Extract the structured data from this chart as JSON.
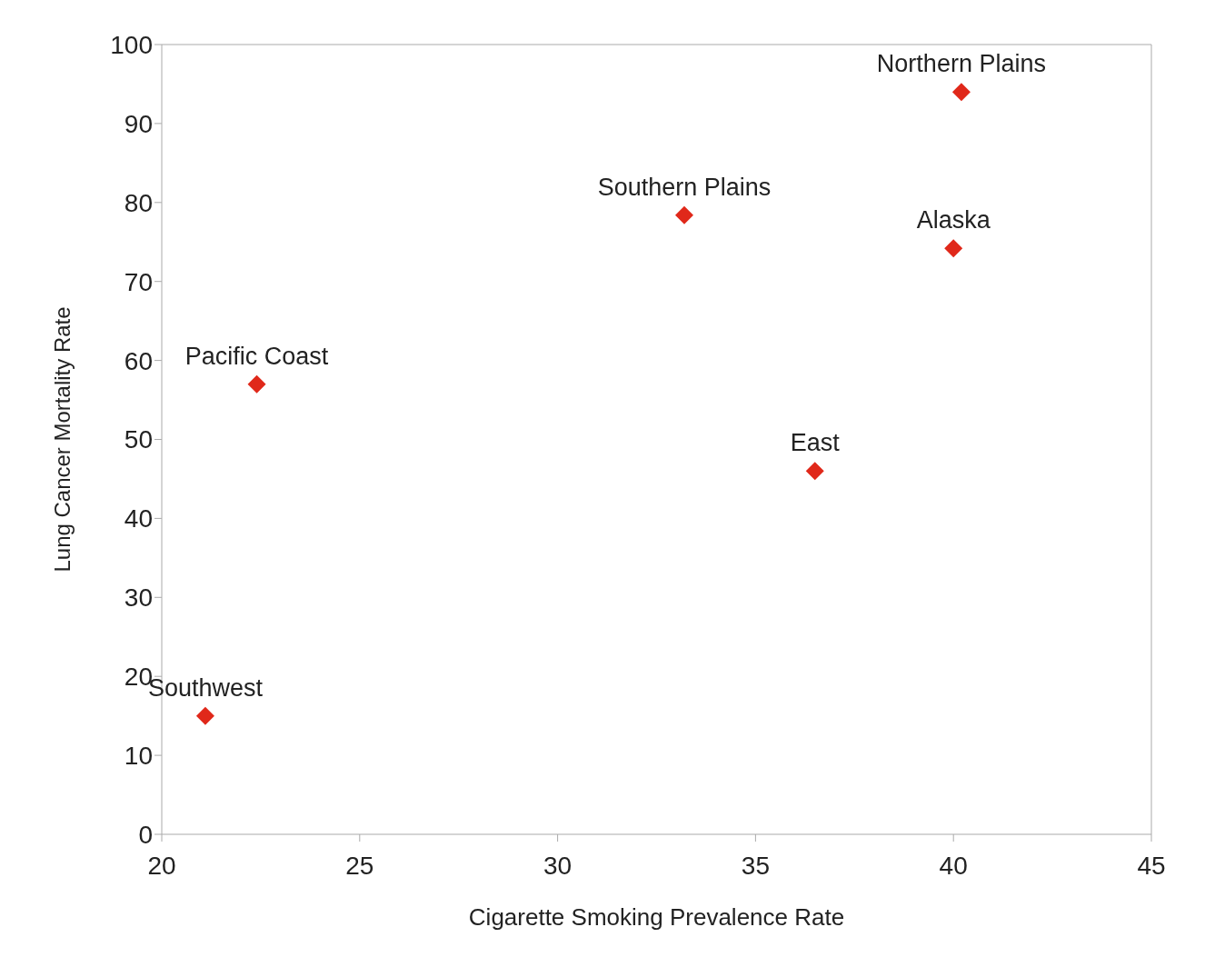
{
  "chart_data": {
    "type": "scatter",
    "xlabel": "Cigarette Smoking Prevalence Rate",
    "ylabel": "Lung Cancer Mortality Rate",
    "x": [
      21.1,
      22.4,
      33.2,
      36.5,
      40.0,
      40.2
    ],
    "series": [
      {
        "color": "#e0281a",
        "values": [
          15,
          57,
          78.4,
          46,
          74.2,
          94
        ]
      }
    ],
    "xlim": [
      20,
      45
    ],
    "xticks": [
      20,
      25,
      30,
      35,
      40,
      45
    ],
    "ylim": [
      0,
      100
    ],
    "yticks": [
      0,
      10,
      20,
      30,
      40,
      50,
      60,
      70,
      80,
      90,
      100
    ],
    "marker": "diamond",
    "grid": false,
    "legend": false,
    "annotations": [
      {
        "text": "Southwest",
        "x": 21.1,
        "y": 15
      },
      {
        "text": "Pacific Coast",
        "x": 22.4,
        "y": 57
      },
      {
        "text": "Southern Plains",
        "x": 33.2,
        "y": 78.4
      },
      {
        "text": "East",
        "x": 36.5,
        "y": 46
      },
      {
        "text": "Alaska",
        "x": 40.0,
        "y": 74.2
      },
      {
        "text": "Northern Plains",
        "x": 40.2,
        "y": 94
      }
    ]
  }
}
